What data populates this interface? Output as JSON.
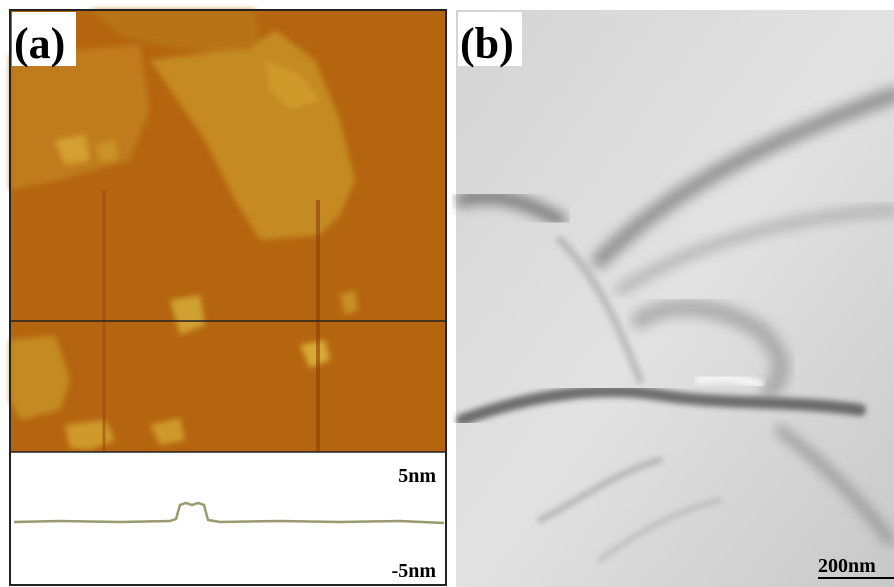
{
  "panels": [
    {
      "label": "(a)",
      "profile": {
        "top_label": "5nm",
        "bottom_label": "-5nm"
      }
    },
    {
      "label": "(b)",
      "scale_bar": "200nm"
    }
  ]
}
